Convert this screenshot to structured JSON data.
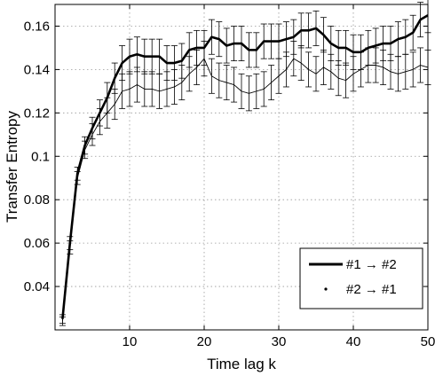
{
  "chart_data": {
    "type": "line",
    "title": "",
    "xlabel": "Time lag k",
    "ylabel": "Transfer Entropy",
    "xlim": [
      0,
      50
    ],
    "ylim": [
      0.02,
      0.17
    ],
    "x_ticks": [
      10,
      20,
      30,
      40,
      50
    ],
    "y_ticks": [
      0.04,
      0.06,
      0.08,
      0.1,
      0.12,
      0.14,
      0.16
    ],
    "x_tick_labels": [
      "10",
      "20",
      "30",
      "40",
      "50"
    ],
    "y_tick_labels": [
      "0.04",
      "0.06",
      "0.08",
      "0.1",
      "0.12",
      "0.14",
      "0.16"
    ],
    "grid": true,
    "legend_position": "lower-right",
    "x": [
      1,
      2,
      3,
      4,
      5,
      6,
      7,
      8,
      9,
      10,
      11,
      12,
      13,
      14,
      15,
      16,
      17,
      18,
      19,
      20,
      21,
      22,
      23,
      24,
      25,
      26,
      27,
      28,
      29,
      30,
      31,
      32,
      33,
      34,
      35,
      36,
      37,
      38,
      39,
      40,
      41,
      42,
      43,
      44,
      45,
      46,
      47,
      48,
      49,
      50
    ],
    "series": [
      {
        "name": "#1 → #2",
        "style": "thick",
        "values": [
          0.025,
          0.06,
          0.092,
          0.105,
          0.113,
          0.12,
          0.127,
          0.136,
          0.143,
          0.146,
          0.147,
          0.146,
          0.146,
          0.146,
          0.143,
          0.143,
          0.144,
          0.149,
          0.15,
          0.15,
          0.155,
          0.154,
          0.151,
          0.152,
          0.152,
          0.149,
          0.149,
          0.153,
          0.153,
          0.153,
          0.154,
          0.155,
          0.158,
          0.158,
          0.159,
          0.156,
          0.152,
          0.15,
          0.15,
          0.148,
          0.148,
          0.15,
          0.151,
          0.152,
          0.152,
          0.154,
          0.155,
          0.157,
          0.163,
          0.165
        ],
        "errors": [
          0.002,
          0.003,
          0.003,
          0.004,
          0.005,
          0.006,
          0.007,
          0.007,
          0.008,
          0.008,
          0.008,
          0.008,
          0.008,
          0.008,
          0.008,
          0.008,
          0.008,
          0.008,
          0.008,
          0.008,
          0.008,
          0.008,
          0.008,
          0.008,
          0.008,
          0.008,
          0.008,
          0.008,
          0.008,
          0.008,
          0.008,
          0.008,
          0.008,
          0.008,
          0.008,
          0.008,
          0.008,
          0.008,
          0.008,
          0.008,
          0.008,
          0.008,
          0.008,
          0.008,
          0.008,
          0.008,
          0.008,
          0.008,
          0.008,
          0.008
        ]
      },
      {
        "name": "#2 → #1",
        "style": "thin",
        "values": [
          0.024,
          0.058,
          0.09,
          0.103,
          0.11,
          0.116,
          0.12,
          0.124,
          0.13,
          0.131,
          0.133,
          0.131,
          0.131,
          0.13,
          0.131,
          0.132,
          0.134,
          0.138,
          0.141,
          0.145,
          0.137,
          0.135,
          0.134,
          0.133,
          0.13,
          0.129,
          0.13,
          0.131,
          0.134,
          0.137,
          0.14,
          0.145,
          0.143,
          0.14,
          0.138,
          0.141,
          0.139,
          0.136,
          0.135,
          0.138,
          0.14,
          0.142,
          0.142,
          0.141,
          0.139,
          0.138,
          0.139,
          0.14,
          0.142,
          0.141
        ],
        "errors": [
          0.002,
          0.003,
          0.003,
          0.004,
          0.005,
          0.006,
          0.007,
          0.007,
          0.008,
          0.008,
          0.008,
          0.008,
          0.008,
          0.008,
          0.008,
          0.008,
          0.008,
          0.008,
          0.008,
          0.008,
          0.008,
          0.008,
          0.008,
          0.008,
          0.008,
          0.008,
          0.008,
          0.008,
          0.008,
          0.008,
          0.008,
          0.008,
          0.008,
          0.008,
          0.008,
          0.008,
          0.008,
          0.008,
          0.008,
          0.008,
          0.008,
          0.008,
          0.008,
          0.008,
          0.008,
          0.008,
          0.008,
          0.008,
          0.008,
          0.008
        ]
      }
    ]
  }
}
